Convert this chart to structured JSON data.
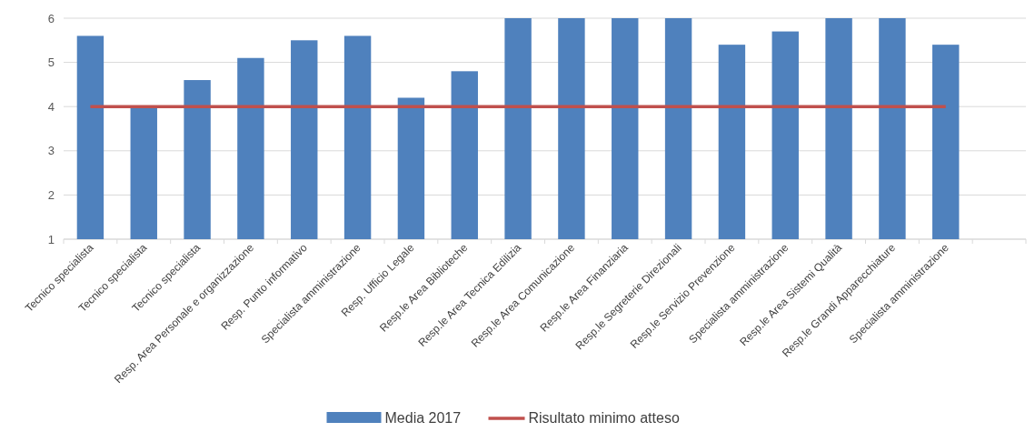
{
  "chart_data": {
    "type": "bar",
    "categories": [
      "Tecnico specialista",
      "Tecnico specialista",
      "Tecnico specialista",
      "Resp. Area Personale e organizzazione",
      "Resp. Punto informativo",
      "Specialista amministrazione",
      "Resp. Ufficio Legale",
      "Resp.le Area Biblioteche",
      "Resp.le Area Tecnica Edilizia",
      "Resp.le Area Comunicazione",
      "Resp.le Area Finanziaria",
      "Resp.le Segreterie Direzionali",
      "Resp.le Servizio Prevenzione",
      "Specialista amministrazione",
      "Resp.le Area Sistemi Qualità",
      "Resp.le Grandi Apparecchiature",
      "Specialista amministrazione",
      null
    ],
    "series": [
      {
        "name": "Media 2017",
        "color": "#4f81bd",
        "values": [
          5.6,
          4.0,
          4.6,
          5.1,
          5.5,
          5.6,
          4.2,
          4.8,
          6,
          6,
          6,
          6,
          5.4,
          5.7,
          6,
          6,
          5.4,
          null
        ]
      },
      {
        "name": "Risultato minimo atteso",
        "type": "line",
        "color": "#c0504d",
        "values": [
          4,
          4,
          4,
          4,
          4,
          4,
          4,
          4,
          4,
          4,
          4,
          4,
          4,
          4,
          4,
          4,
          4,
          null
        ]
      }
    ],
    "ylim": [
      1,
      6
    ],
    "yticks": [
      1,
      2,
      3,
      4,
      5,
      6
    ],
    "grid": "y",
    "legend": "bottom"
  }
}
